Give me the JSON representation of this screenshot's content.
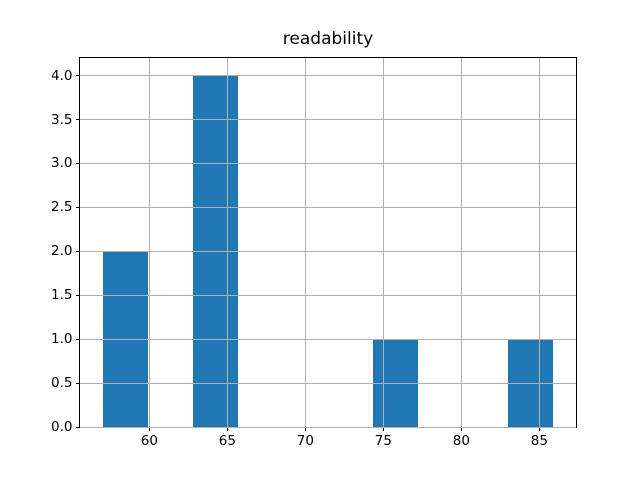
{
  "figure": {
    "background": "#ffffff"
  },
  "chart_data": {
    "type": "bar",
    "subtype": "histogram",
    "title": "readability",
    "xlabel": "",
    "ylabel": "",
    "bin_edges": [
      57.0,
      59.89,
      62.78,
      65.67,
      68.56,
      71.45,
      74.34,
      77.23,
      80.12,
      83.01,
      85.9
    ],
    "counts": [
      2,
      0,
      4,
      0,
      0,
      0,
      1,
      0,
      0,
      1
    ],
    "xtick_values": [
      60,
      65,
      70,
      75,
      80,
      85
    ],
    "xtick_labels": [
      "60",
      "65",
      "70",
      "75",
      "80",
      "85"
    ],
    "ytick_values": [
      0,
      0.5,
      1,
      1.5,
      2,
      2.5,
      3,
      3.5,
      4
    ],
    "ytick_labels": [
      "0.0",
      "0.5",
      "1.0",
      "1.5",
      "2.0",
      "2.5",
      "3.0",
      "3.5",
      "4.0"
    ],
    "xlim": [
      55.555,
      87.345
    ],
    "ylim": [
      0,
      4.2
    ],
    "grid": true,
    "grid_above_bars": true,
    "legend": null,
    "colors": {
      "bar": "#1f77b4",
      "grid": "#b0b0b0",
      "spine": "#000000",
      "text": "#000000"
    }
  }
}
